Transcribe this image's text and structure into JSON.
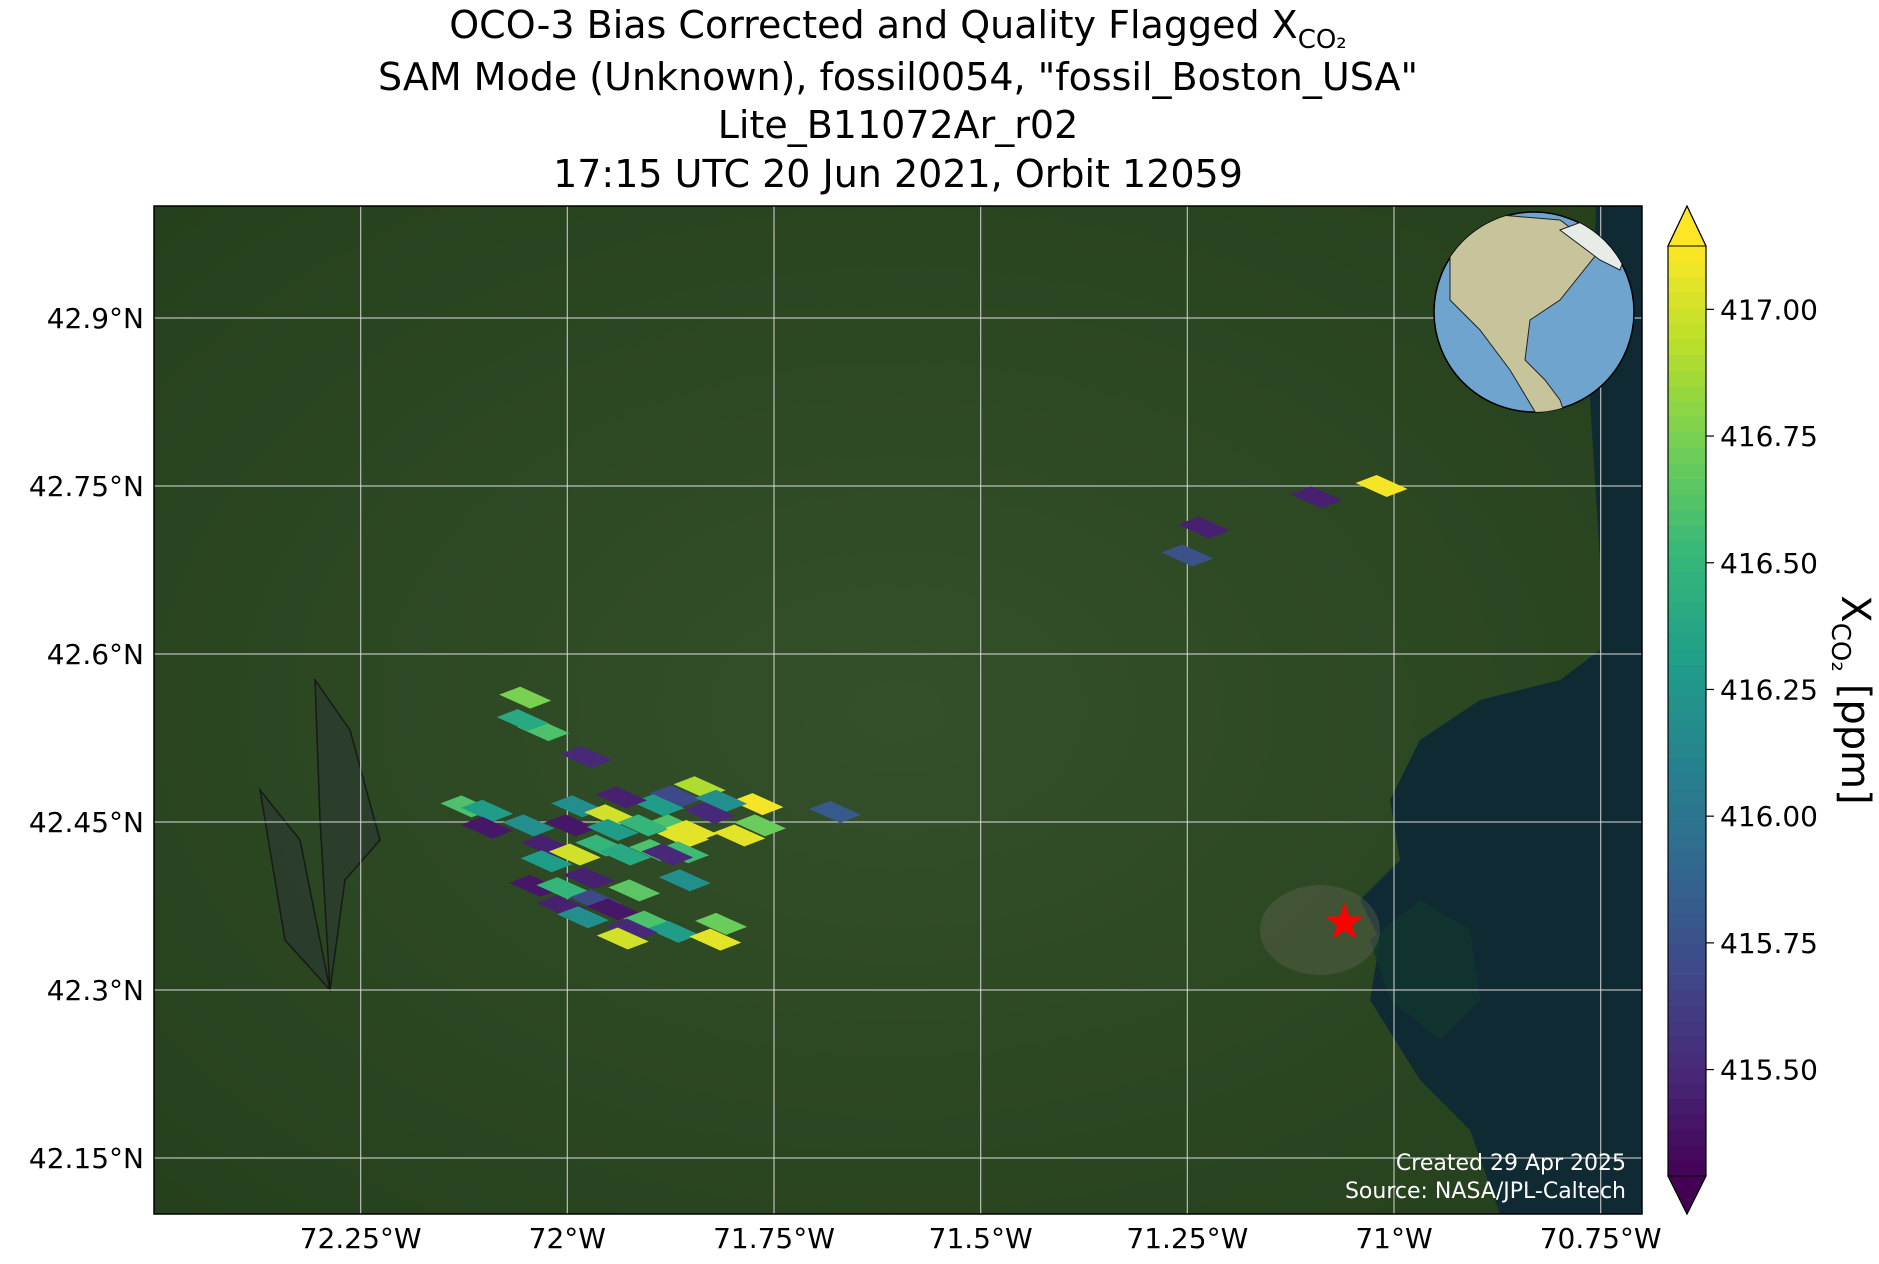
{
  "chart_data": {
    "type": "map",
    "title": "OCO-3 Bias Corrected and Quality Flagged X",
    "title_subscript": "CO₂",
    "subtitles": [
      "SAM Mode (Unknown), fossil0054, \"fossil_Boston_USA\"",
      "Lite_B11072Ar_r02",
      "17:15 UTC 20 Jun 2021, Orbit 12059"
    ],
    "xlim": [
      -72.5,
      -70.7
    ],
    "ylim": [
      42.1,
      43.0
    ],
    "xticks": [
      {
        "value": -72.25,
        "label": "72.25°W"
      },
      {
        "value": -72,
        "label": "72°W"
      },
      {
        "value": -71.75,
        "label": "71.75°W"
      },
      {
        "value": -71.5,
        "label": "71.5°W"
      },
      {
        "value": -71.25,
        "label": "71.25°W"
      },
      {
        "value": -71,
        "label": "71°W"
      },
      {
        "value": -70.75,
        "label": "70.75°W"
      }
    ],
    "yticks": [
      {
        "value": 42.15,
        "label": "42.15°N"
      },
      {
        "value": 42.3,
        "label": "42.3°N"
      },
      {
        "value": 42.45,
        "label": "42.45°N"
      },
      {
        "value": 42.6,
        "label": "42.6°N"
      },
      {
        "value": 42.75,
        "label": "42.75°N"
      },
      {
        "value": 42.9,
        "label": "42.9°N"
      }
    ],
    "grid": true,
    "colormap": "viridis",
    "soundings": {
      "lon": [
        -71.015,
        -71.094,
        -71.23,
        -71.25,
        -72.051,
        -72.029,
        -72.054,
        -71.977,
        -71.676,
        -71.77,
        -71.767,
        -71.792,
        -71.84,
        -71.869,
        -71.814,
        -71.828,
        -71.89,
        -71.872,
        -71.86,
        -71.935,
        -71.988,
        -71.948,
        -71.996,
        -71.945,
        -71.908,
        -72.122,
        -72.097,
        -72.097,
        -72.047,
        -72.025,
        -71.991,
        -72.025,
        -71.959,
        -71.93,
        -71.894,
        -71.85,
        -71.86,
        -71.879,
        -71.858,
        -72.039,
        -72.006,
        -71.974,
        -71.966,
        -72.006,
        -71.919,
        -71.945,
        -71.981,
        -71.901,
        -71.872,
        -71.922,
        -71.933,
        -71.814,
        -71.821
      ],
      "lat": [
        42.75,
        42.74,
        42.713,
        42.688,
        42.561,
        42.532,
        42.541,
        42.508,
        42.459,
        42.466,
        42.447,
        42.438,
        42.481,
        42.473,
        42.469,
        42.458,
        42.465,
        42.447,
        42.437,
        42.472,
        42.464,
        42.456,
        42.447,
        42.443,
        42.447,
        42.464,
        42.46,
        42.445,
        42.447,
        42.429,
        42.421,
        42.415,
        42.429,
        42.421,
        42.425,
        42.442,
        42.423,
        42.421,
        42.398,
        42.393,
        42.391,
        42.4,
        42.38,
        42.375,
        42.389,
        42.372,
        42.365,
        42.361,
        42.352,
        42.354,
        42.346,
        42.359,
        42.345
      ],
      "values": [
        417.1,
        415.45,
        415.45,
        415.75,
        416.75,
        416.6,
        416.4,
        415.5,
        415.8,
        417.1,
        416.7,
        417.05,
        416.9,
        415.7,
        416.2,
        415.5,
        416.3,
        416.6,
        417.05,
        415.45,
        416.2,
        417.0,
        415.4,
        416.3,
        416.5,
        416.6,
        416.3,
        415.4,
        416.2,
        415.45,
        417.0,
        416.3,
        416.5,
        416.4,
        416.6,
        417.05,
        416.55,
        415.5,
        416.2,
        415.4,
        416.5,
        415.45,
        415.7,
        415.45,
        416.65,
        415.4,
        416.2,
        416.6,
        416.3,
        415.5,
        417.0,
        416.7,
        417.05
      ]
    },
    "target": {
      "lon": -71.06,
      "lat": 42.36
    },
    "colorbar": {
      "label": "X",
      "label_subscript": "CO₂",
      "unit": "[ppm]",
      "clim": [
        415.29,
        417.125
      ],
      "ticks": [
        {
          "value": 415.5,
          "label": "415.50"
        },
        {
          "value": 415.75,
          "label": "415.75"
        },
        {
          "value": 416,
          "label": "416.00"
        },
        {
          "value": 416.25,
          "label": "416.25"
        },
        {
          "value": 416.5,
          "label": "416.50"
        },
        {
          "value": 416.75,
          "label": "416.75"
        },
        {
          "value": 417,
          "label": "417.00"
        }
      ]
    },
    "annotations": [
      "Created 29 Apr 2025",
      "Source: NASA/JPL-Caltech"
    ]
  }
}
